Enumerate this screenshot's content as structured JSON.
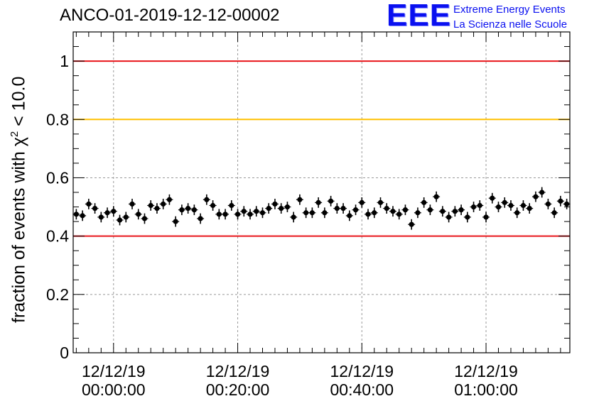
{
  "title": "ANCO-01-2019-12-12-00002",
  "logo": {
    "mark": "EEE",
    "line1": "Extreme Energy Events",
    "line2": "La Scienza nelle Scuole"
  },
  "colors": {
    "logo": "#0a10f0",
    "red_line": "#e8141a",
    "orange_line": "#ffc000",
    "markers": "#000000",
    "grid": "#9a9a9a"
  },
  "chart_data": {
    "type": "scatter",
    "title": "ANCO-01-2019-12-12-00002",
    "ylabel": {
      "prefix": "fraction of events with ",
      "chi": "χ",
      "power": "2",
      "suffix": " < 10.0"
    },
    "xlim_minutes": [
      -6.5,
      73.5
    ],
    "ylim": [
      0,
      1.1
    ],
    "yticks": [
      0,
      0.2,
      0.4,
      0.6,
      0.8,
      1
    ],
    "ytick_labels": [
      "0",
      "0.2",
      "0.4",
      "0.6",
      "0.8",
      "1"
    ],
    "xticks_minutes": [
      0,
      20,
      40,
      60
    ],
    "xtick_labels": [
      [
        "12/12/19",
        "00:00:00"
      ],
      [
        "12/12/19",
        "00:20:00"
      ],
      [
        "12/12/19",
        "00:40:00"
      ],
      [
        "12/12/19",
        "01:00:00"
      ]
    ],
    "grid": true,
    "reference_lines": [
      {
        "y": 1.0,
        "color": "#e8141a"
      },
      {
        "y": 0.8,
        "color": "#ffc000"
      },
      {
        "y": 0.4,
        "color": "#e8141a"
      }
    ],
    "error": 0.018,
    "series": [
      {
        "x_minutes": [
          -6.0,
          -5.0,
          -4.0,
          -3.0,
          -2.0,
          -1.0,
          0.0,
          1.0,
          2.0,
          3.0,
          4.0,
          5.0,
          6.0,
          7.0,
          8.0,
          9.0,
          10.0,
          11.0,
          12.0,
          13.0,
          14.0,
          15.0,
          16.0,
          17.0,
          18.0,
          19.0,
          20.0,
          21.0,
          22.0,
          23.0,
          24.0,
          25.0,
          26.0,
          27.0,
          28.0,
          29.0,
          30.0,
          31.0,
          32.0,
          33.0,
          34.0,
          35.0,
          36.0,
          37.0,
          38.0,
          39.0,
          40.0,
          41.0,
          42.0,
          43.0,
          44.0,
          45.0,
          46.0,
          47.0,
          48.0,
          49.0,
          50.0,
          51.0,
          52.0,
          53.0,
          54.0,
          55.0,
          56.0,
          57.0,
          58.0,
          59.0,
          60.0,
          61.0,
          62.0,
          63.0,
          64.0,
          65.0,
          66.0,
          67.0,
          68.0,
          69.0,
          70.0,
          71.0,
          72.0,
          73.0
        ],
        "y": [
          0.475,
          0.47,
          0.51,
          0.495,
          0.465,
          0.48,
          0.485,
          0.455,
          0.465,
          0.51,
          0.475,
          0.46,
          0.505,
          0.495,
          0.51,
          0.525,
          0.45,
          0.49,
          0.495,
          0.49,
          0.46,
          0.525,
          0.505,
          0.475,
          0.475,
          0.505,
          0.475,
          0.485,
          0.475,
          0.485,
          0.48,
          0.495,
          0.51,
          0.495,
          0.5,
          0.465,
          0.525,
          0.48,
          0.48,
          0.515,
          0.48,
          0.52,
          0.495,
          0.495,
          0.47,
          0.49,
          0.515,
          0.475,
          0.48,
          0.515,
          0.495,
          0.485,
          0.475,
          0.49,
          0.44,
          0.48,
          0.515,
          0.49,
          0.535,
          0.485,
          0.465,
          0.485,
          0.49,
          0.465,
          0.5,
          0.505,
          0.465,
          0.53,
          0.5,
          0.515,
          0.505,
          0.48,
          0.505,
          0.495,
          0.535,
          0.55,
          0.51,
          0.48,
          0.52,
          0.51
        ]
      }
    ]
  }
}
